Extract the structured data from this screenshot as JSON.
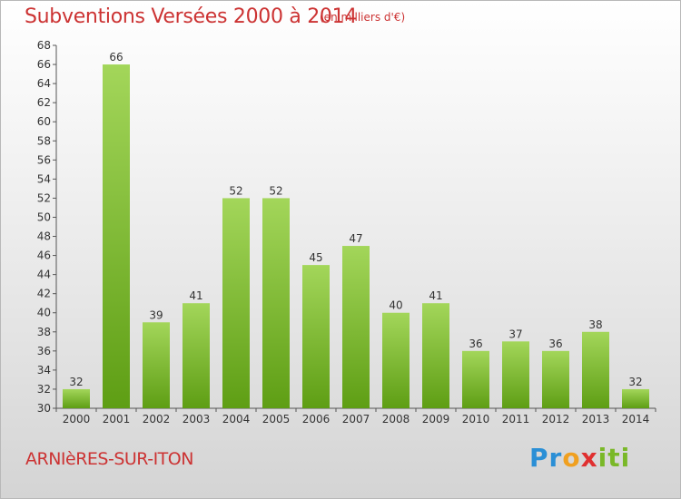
{
  "header": {
    "title": "Subventions Versées 2000 à 2014",
    "subtitle": "(en milliers d'€)"
  },
  "footer": {
    "commune": "ARNIèRES-SUR-ITON",
    "logo_text": "Proxiti"
  },
  "colors": {
    "title": "#cc3333",
    "bar_top": "#a3d65a",
    "bar_bottom": "#5e9e14"
  },
  "chart_data": {
    "type": "bar",
    "title": "Subventions Versées 2000 à 2014",
    "subtitle": "(en milliers d'€)",
    "xlabel": "",
    "ylabel": "",
    "categories": [
      "2000",
      "2001",
      "2002",
      "2003",
      "2004",
      "2005",
      "2006",
      "2007",
      "2008",
      "2009",
      "2010",
      "2011",
      "2012",
      "2013",
      "2014"
    ],
    "values": [
      32,
      66,
      39,
      41,
      52,
      52,
      45,
      47,
      40,
      41,
      36,
      37,
      36,
      38,
      32
    ],
    "ylim": [
      30,
      68
    ],
    "yticks": [
      30,
      32,
      34,
      36,
      38,
      40,
      42,
      44,
      46,
      48,
      50,
      52,
      54,
      56,
      58,
      60,
      62,
      64,
      66,
      68
    ],
    "grid": false,
    "legend": "none"
  }
}
